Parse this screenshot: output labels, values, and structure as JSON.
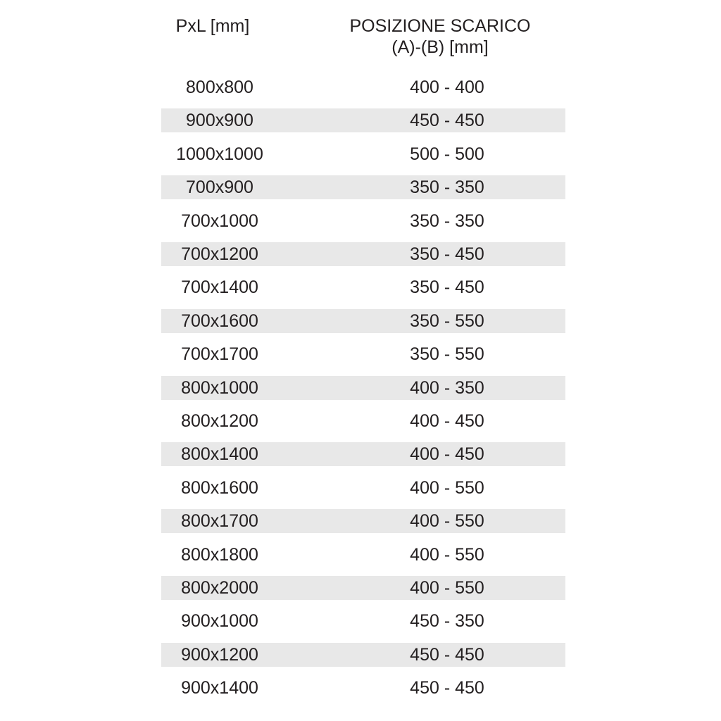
{
  "table": {
    "headers": [
      "PxL [mm]",
      "POSIZIONE SCARICO",
      "(A)-(B) [mm]"
    ],
    "stripe_color": "#e8e8e8",
    "rows": [
      [
        "800x800",
        "400 - 400"
      ],
      [
        "900x900",
        "450 - 450"
      ],
      [
        "1000x1000",
        "500 - 500"
      ],
      [
        "700x900",
        "350 - 350"
      ],
      [
        "700x1000",
        "350 - 350"
      ],
      [
        "700x1200",
        "350 - 450"
      ],
      [
        "700x1400",
        "350 - 450"
      ],
      [
        "700x1600",
        "350 - 550"
      ],
      [
        "700x1700",
        "350 - 550"
      ],
      [
        "800x1000",
        "400 - 350"
      ],
      [
        "800x1200",
        "400 - 450"
      ],
      [
        "800x1400",
        "400 - 450"
      ],
      [
        "800x1600",
        "400 - 550"
      ],
      [
        "800x1700",
        "400 - 550"
      ],
      [
        "800x1800",
        "400 - 550"
      ],
      [
        "800x2000",
        "400 - 550"
      ],
      [
        "900x1000",
        "450 - 350"
      ],
      [
        "900x1200",
        "450 - 450"
      ],
      [
        "900x1400",
        "450 - 450"
      ]
    ]
  }
}
